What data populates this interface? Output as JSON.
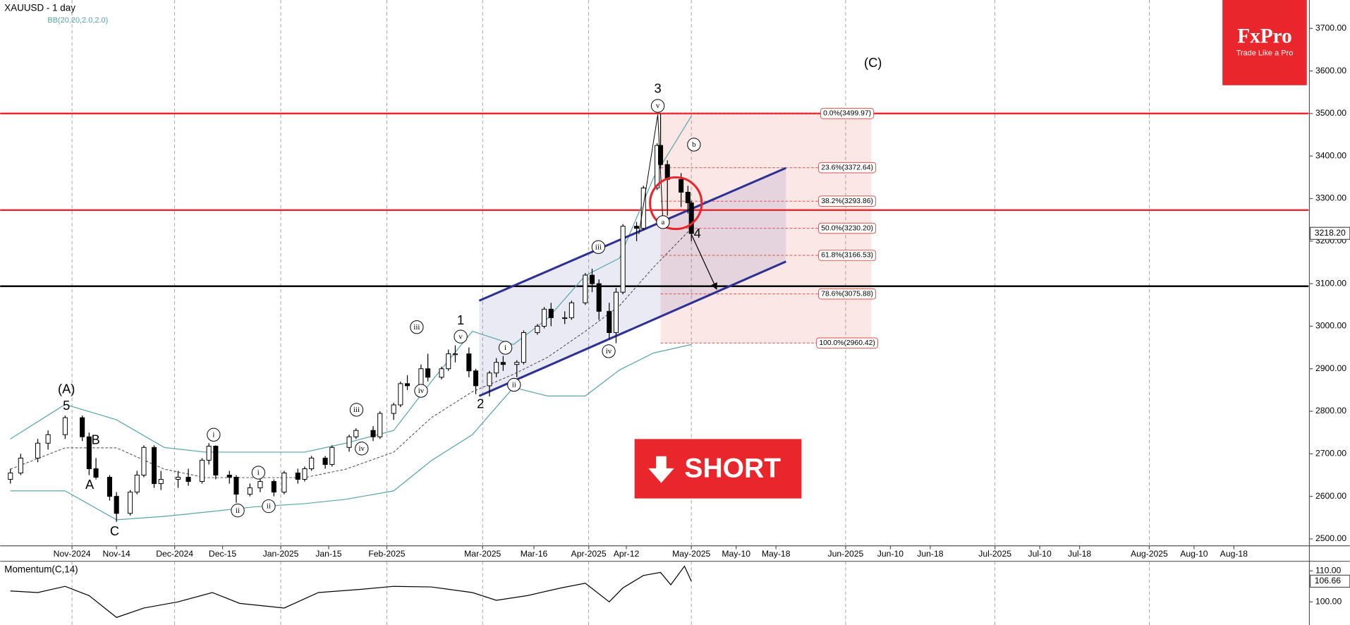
{
  "chart_data": {
    "type": "candlestick",
    "title": "XAUUSD - 1 day",
    "indicator": "BB(20,20,2.0,2.0)",
    "xlim": [
      "2024-10-11",
      "2025-09-02"
    ],
    "ylim": [
      2483.8,
      3766.8
    ],
    "yticks": [
      {
        "value": 2500,
        "label": "2500.00"
      },
      {
        "value": 2600,
        "label": "2600.00"
      },
      {
        "value": 2700,
        "label": "2700.00"
      },
      {
        "value": 2800,
        "label": "2800.00"
      },
      {
        "value": 2900,
        "label": "2900.00"
      },
      {
        "value": 3000,
        "label": "3000.00"
      },
      {
        "value": 3100,
        "label": "3100.00"
      },
      {
        "value": 3200,
        "label": "3200.00"
      },
      {
        "value": 3300,
        "label": "3300.00"
      },
      {
        "value": 3400,
        "label": "3400.00"
      },
      {
        "value": 3500,
        "label": "3500.00"
      },
      {
        "value": 3600,
        "label": "3600.00"
      },
      {
        "value": 3700,
        "label": "3700.00"
      }
    ],
    "xticks": [
      {
        "value": "2024-11-01",
        "label": "Nov-2024"
      },
      {
        "value": "2024-11-14",
        "label": "Nov-14"
      },
      {
        "value": "2024-12-01",
        "label": "Dec-2024"
      },
      {
        "value": "2024-12-15",
        "label": "Dec-15"
      },
      {
        "value": "2025-01-01",
        "label": "Jan-2025"
      },
      {
        "value": "2025-01-15",
        "label": "Jan-15"
      },
      {
        "value": "2025-02-01",
        "label": "Feb-2025"
      },
      {
        "value": "2025-03-01",
        "label": "Mar-2025"
      },
      {
        "value": "2025-03-16",
        "label": "Mar-16"
      },
      {
        "value": "2025-04-01",
        "label": "Apr-2025"
      },
      {
        "value": "2025-04-12",
        "label": "Apr-12"
      },
      {
        "value": "2025-05-01",
        "label": "May-2025"
      },
      {
        "value": "2025-05-10",
        "label": "May-10"
      },
      {
        "value": "2025-05-18",
        "label": "May-18"
      },
      {
        "value": "2025-06-01",
        "label": "Jun-2025"
      },
      {
        "value": "2025-06-10",
        "label": "Jun-10"
      },
      {
        "value": "2025-06-18",
        "label": "Jun-18"
      },
      {
        "value": "2025-07-01",
        "label": "Jul-2025"
      },
      {
        "value": "2025-07-10",
        "label": "Jul-10"
      },
      {
        "value": "2025-07-18",
        "label": "Jul-18"
      },
      {
        "value": "2025-08-01",
        "label": "Aug-2025"
      },
      {
        "value": "2025-08-10",
        "label": "Aug-10"
      },
      {
        "value": "2025-08-18",
        "label": "Aug-18"
      }
    ],
    "grid": true,
    "up_color": "#ffffff",
    "down_color": "#000000",
    "x": [
      "2024-10-14",
      "2024-10-17",
      "2024-10-22",
      "2024-10-25",
      "2024-10-30",
      "2024-11-04",
      "2024-11-06",
      "2024-11-08",
      "2024-11-12",
      "2024-11-14",
      "2024-11-18",
      "2024-11-20",
      "2024-11-22",
      "2024-11-25",
      "2024-11-27",
      "2024-12-02",
      "2024-12-05",
      "2024-12-09",
      "2024-12-11",
      "2024-12-13",
      "2024-12-17",
      "2024-12-19",
      "2024-12-23",
      "2024-12-26",
      "2024-12-30",
      "2025-01-02",
      "2025-01-06",
      "2025-01-08",
      "2025-01-10",
      "2025-01-14",
      "2025-01-16",
      "2025-01-21",
      "2025-01-23",
      "2025-01-28",
      "2025-01-30",
      "2025-02-03",
      "2025-02-05",
      "2025-02-07",
      "2025-02-11",
      "2025-02-13",
      "2025-02-17",
      "2025-02-19",
      "2025-02-21",
      "2025-02-25",
      "2025-02-27",
      "2025-03-03",
      "2025-03-05",
      "2025-03-07",
      "2025-03-11",
      "2025-03-13",
      "2025-03-17",
      "2025-03-19",
      "2025-03-21",
      "2025-03-25",
      "2025-03-27",
      "2025-03-31",
      "2025-04-02",
      "2025-04-04",
      "2025-04-07",
      "2025-04-09",
      "2025-04-11",
      "2025-04-15",
      "2025-04-17",
      "2025-04-21",
      "2025-04-22",
      "2025-04-24",
      "2025-04-28",
      "2025-04-30",
      "2025-05-01"
    ],
    "open": [
      2640,
      2655,
      2690,
      2725,
      2745,
      2785,
      2740,
      2665,
      2645,
      2600,
      2560,
      2610,
      2650,
      2715,
      2630,
      2640,
      2645,
      2635,
      2685,
      2718,
      2650,
      2645,
      2605,
      2620,
      2635,
      2610,
      2655,
      2640,
      2665,
      2690,
      2675,
      2715,
      2740,
      2755,
      2740,
      2795,
      2815,
      2865,
      2860,
      2900,
      2880,
      2900,
      2935,
      2935,
      2895,
      2860,
      2890,
      2915,
      2910,
      2915,
      2985,
      3000,
      3040,
      3020,
      3020,
      3055,
      3120,
      3100,
      3035,
      2985,
      3080,
      3235,
      3230,
      3325,
      3425,
      3380,
      3345,
      3315,
      3290
    ],
    "high": [
      2665,
      2700,
      2735,
      2755,
      2790,
      2790,
      2750,
      2690,
      2650,
      2610,
      2615,
      2660,
      2720,
      2720,
      2660,
      2660,
      2665,
      2690,
      2725,
      2720,
      2660,
      2650,
      2630,
      2645,
      2640,
      2660,
      2665,
      2670,
      2695,
      2695,
      2720,
      2745,
      2760,
      2765,
      2800,
      2820,
      2870,
      2885,
      2910,
      2935,
      2905,
      2945,
      2955,
      2950,
      2900,
      2895,
      2925,
      2930,
      2920,
      2990,
      3005,
      3045,
      3055,
      3035,
      3060,
      3125,
      3135,
      3110,
      3055,
      3090,
      3240,
      3245,
      3330,
      3430,
      3500,
      3390,
      3360,
      3330,
      3295
    ],
    "low": [
      2630,
      2650,
      2680,
      2710,
      2735,
      2730,
      2650,
      2640,
      2590,
      2540,
      2555,
      2605,
      2645,
      2620,
      2615,
      2620,
      2625,
      2630,
      2675,
      2640,
      2630,
      2585,
      2600,
      2610,
      2600,
      2605,
      2630,
      2635,
      2660,
      2665,
      2670,
      2705,
      2735,
      2730,
      2735,
      2780,
      2810,
      2850,
      2855,
      2870,
      2875,
      2895,
      2915,
      2880,
      2840,
      2835,
      2880,
      2895,
      2880,
      2910,
      2980,
      2995,
      3000,
      3005,
      3015,
      3050,
      3080,
      3015,
      2970,
      2960,
      3075,
      3200,
      3225,
      3320,
      3370,
      3260,
      3280,
      3265,
      3200
    ],
    "close": [
      2655,
      2690,
      2725,
      2745,
      2785,
      2740,
      2665,
      2645,
      2600,
      2560,
      2610,
      2650,
      2715,
      2630,
      2640,
      2645,
      2635,
      2685,
      2718,
      2650,
      2645,
      2605,
      2620,
      2635,
      2610,
      2655,
      2640,
      2665,
      2690,
      2675,
      2715,
      2740,
      2755,
      2740,
      2795,
      2815,
      2865,
      2860,
      2900,
      2880,
      2900,
      2935,
      2935,
      2895,
      2860,
      2890,
      2915,
      2910,
      2915,
      2985,
      3000,
      3040,
      3020,
      3020,
      3055,
      3120,
      3100,
      3035,
      2985,
      3080,
      3235,
      3230,
      3325,
      3425,
      3380,
      3345,
      3315,
      3290,
      3218
    ],
    "last_price": {
      "value": 3218.2,
      "label": "3218.20"
    },
    "bands": {
      "color": "#5aa5a8",
      "x": [
        "2024-10-14",
        "2024-10-30",
        "2024-11-14",
        "2024-11-28",
        "2024-12-10",
        "2024-12-24",
        "2025-01-08",
        "2025-01-20",
        "2025-02-03",
        "2025-02-14",
        "2025-02-26",
        "2025-03-10",
        "2025-03-20",
        "2025-03-31",
        "2025-04-10",
        "2025-04-20",
        "2025-05-01"
      ],
      "upper": [
        2735,
        2816,
        2780,
        2715,
        2704,
        2704,
        2704,
        2725,
        2755,
        2870,
        2988,
        2957,
        3018,
        3119,
        3160,
        3350,
        3494
      ],
      "middle": [
        2664,
        2714,
        2714,
        2664,
        2644,
        2644,
        2644,
        2664,
        2704,
        2785,
        2846,
        2887,
        2927,
        2988,
        3048,
        3139,
        3230
      ],
      "lower": [
        2613,
        2613,
        2545,
        2553,
        2563,
        2575,
        2583,
        2593,
        2613,
        2684,
        2745,
        2856,
        2836,
        2836,
        2897,
        2937,
        2957
      ]
    },
    "levels": [
      {
        "value": 3500,
        "color": "#e8262b"
      },
      {
        "value": 3273,
        "color": "#e8262b"
      },
      {
        "value": 3094,
        "color": "#000000"
      }
    ],
    "fib": {
      "start": "2025-04-22",
      "color": "#d9534f",
      "levels": [
        {
          "value": 3499.97,
          "label": "0.0%(3499.97)"
        },
        {
          "value": 3372.64,
          "label": "23.6%(3372.64)"
        },
        {
          "value": 3293.86,
          "label": "38.2%(3293.86)"
        },
        {
          "value": 3230.2,
          "label": "50.0%(3230.20)"
        },
        {
          "value": 3166.53,
          "label": "61.8%(3166.53)"
        },
        {
          "value": 3075.88,
          "label": "78.6%(3075.88)"
        },
        {
          "value": 2960.42,
          "label": "100.0%(2960.42)"
        }
      ]
    },
    "channel": {
      "color": "#2e3192",
      "x": [
        "2025-02-28",
        "2025-05-20"
      ],
      "upper": [
        3060,
        3372
      ],
      "lower": [
        2836,
        3152
      ]
    },
    "arrow": {
      "x": [
        "2025-05-01",
        "2025-05-06"
      ],
      "y": [
        3216,
        3089
      ]
    },
    "wave_labels": [
      "(A)",
      "5",
      "B",
      "A",
      "C",
      "1",
      "2",
      "3",
      "4",
      "(C)"
    ],
    "wave_circled": [
      "i",
      "ii",
      "i",
      "ii",
      "iii",
      "iv",
      "iii",
      "v",
      "iv",
      "i",
      "ii",
      "iii",
      "iv",
      "v",
      "a",
      "b"
    ],
    "momentum": {
      "title": "Momentum(C,14)",
      "ylim": [
        93.1,
        112.8
      ],
      "yticks": [
        {
          "value": 100,
          "label": "100.00"
        },
        {
          "value": 110,
          "label": "110.00"
        }
      ],
      "x": [
        "2024-10-14",
        "2024-10-22",
        "2024-10-30",
        "2024-11-06",
        "2024-11-14",
        "2024-11-22",
        "2024-12-02",
        "2024-12-12",
        "2024-12-20",
        "2025-01-02",
        "2025-01-12",
        "2025-01-24",
        "2025-02-03",
        "2025-02-14",
        "2025-02-26",
        "2025-03-05",
        "2025-03-14",
        "2025-03-24",
        "2025-03-31",
        "2025-04-07",
        "2025-04-11",
        "2025-04-17",
        "2025-04-22",
        "2025-04-25",
        "2025-04-29",
        "2025-05-01"
      ],
      "values": [
        103.5,
        103,
        105,
        102,
        95,
        98,
        100,
        103,
        99.5,
        98,
        103,
        104,
        105,
        104.8,
        103,
        100.5,
        102,
        104.5,
        106,
        100,
        104.5,
        108.5,
        109.5,
        105.5,
        111.5,
        106.66
      ],
      "last": {
        "value": 106.66,
        "label": "106.66"
      }
    }
  },
  "branding": {
    "logo": "FxPro",
    "tagline": "Trade Like a Pro"
  },
  "signal": {
    "label": "SHORT",
    "color": "#e8262b"
  }
}
